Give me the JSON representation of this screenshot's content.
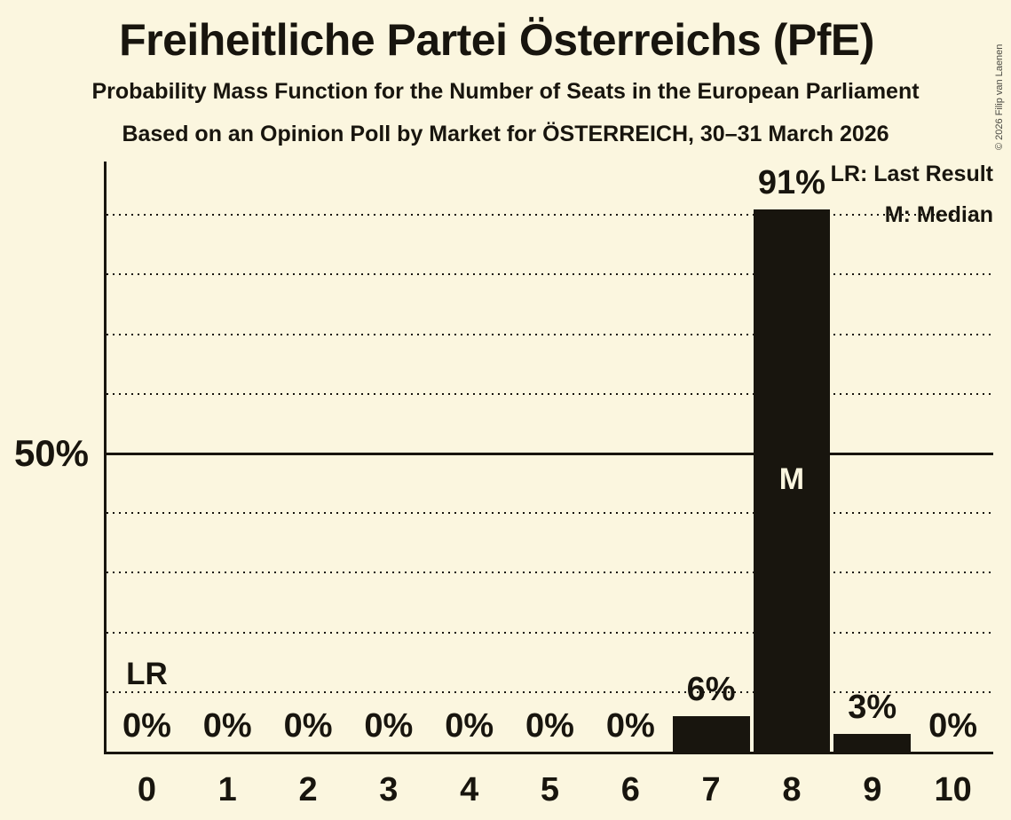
{
  "header": {
    "title": "Freiheitliche Partei Österreichs (PfE)",
    "subtitle": "Probability Mass Function for the Number of Seats in the European Parliament",
    "poll_line": "Based on an Opinion Poll by Market for ÖSTERREICH, 30–31 March 2026"
  },
  "copyright": "© 2026 Filip van Laenen",
  "legend": {
    "lr": "LR: Last Result",
    "m": "M: Median"
  },
  "y_axis": {
    "tick_label": "50%"
  },
  "colors": {
    "background": "#FBF6DF",
    "ink": "#18150E",
    "bar": "#18150E",
    "median_label": "#FBF6DF"
  },
  "chart_data": {
    "type": "bar",
    "title": "Freiheitliche Partei Österreichs (PfE)",
    "subtitle": "Probability Mass Function for the Number of Seats in the European Parliament",
    "source_line": "Based on an Opinion Poll by Market for ÖSTERREICH, 30–31 March 2026",
    "categories": [
      "0",
      "1",
      "2",
      "3",
      "4",
      "5",
      "6",
      "7",
      "8",
      "9",
      "10"
    ],
    "values": [
      0,
      0,
      0,
      0,
      0,
      0,
      0,
      6,
      91,
      3,
      0
    ],
    "value_labels": [
      "0%",
      "0%",
      "0%",
      "0%",
      "0%",
      "0%",
      "0%",
      "6%",
      "91%",
      "3%",
      "0%"
    ],
    "xlabel": "",
    "ylabel": "",
    "ylim": [
      0,
      99
    ],
    "y_tick_labels": [
      "50%"
    ],
    "grid": "dotted horizontal lines every 10%, solid line at 50%",
    "gridlines_pct": [
      10,
      20,
      30,
      40,
      60,
      70,
      80,
      90
    ],
    "solid_line_pct": 50,
    "legend_position": "top-right",
    "legend_entries": [
      "LR: Last Result",
      "M: Median"
    ],
    "annotations": [
      {
        "label": "LR",
        "meaning": "Last Result",
        "seat": "0"
      },
      {
        "label": "M",
        "meaning": "Median",
        "seat": "8"
      }
    ]
  }
}
